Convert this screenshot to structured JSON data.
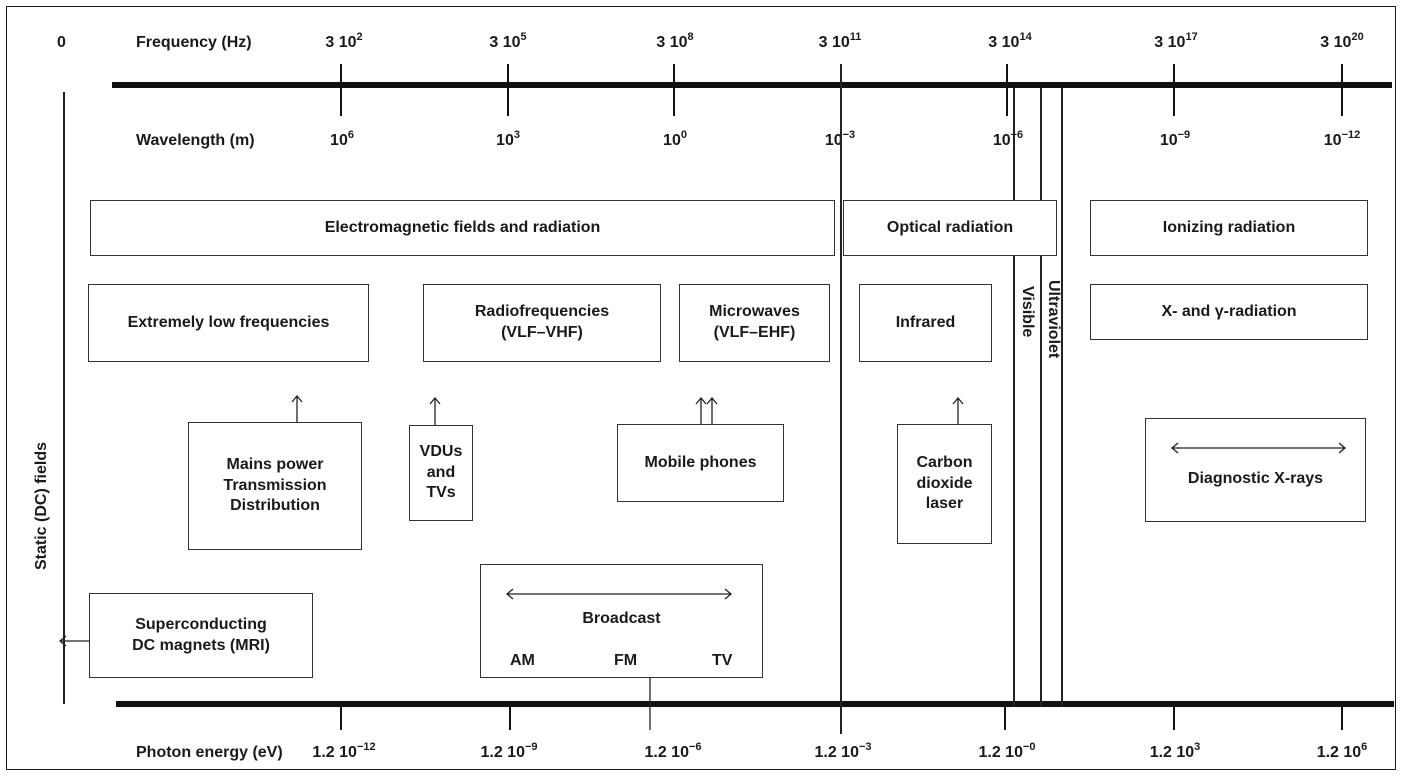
{
  "axes": {
    "zero_label": "0",
    "frequency_label": "Frequency (Hz)",
    "wavelength_label": "Wavelength (m)",
    "photon_label": "Photon energy (eV)",
    "freq_ticks": [
      {
        "base": "3 10",
        "exp": "2"
      },
      {
        "base": "3 10",
        "exp": "5"
      },
      {
        "base": "3 10",
        "exp": "8"
      },
      {
        "base": "3 10",
        "exp": "11"
      },
      {
        "base": "3 10",
        "exp": "14"
      },
      {
        "base": "3 10",
        "exp": "17"
      },
      {
        "base": "3 10",
        "exp": "20"
      }
    ],
    "wave_ticks": [
      {
        "base": "10",
        "exp": "6"
      },
      {
        "base": "10",
        "exp": "3"
      },
      {
        "base": "10",
        "exp": "0"
      },
      {
        "base": "10",
        "exp": "−3"
      },
      {
        "base": "10",
        "exp": "−6"
      },
      {
        "base": "10",
        "exp": "−9"
      },
      {
        "base": "10",
        "exp": "−12"
      }
    ],
    "energy_ticks": [
      {
        "base": "1.2 10",
        "exp": "−12"
      },
      {
        "base": "1.2 10",
        "exp": "−9"
      },
      {
        "base": "1.2 10",
        "exp": "−6"
      },
      {
        "base": "1.2 10",
        "exp": "−3"
      },
      {
        "base": "1.2 10",
        "exp": "−0"
      },
      {
        "base": "1.2 10",
        "exp": "3"
      },
      {
        "base": "1.2 10",
        "exp": "6"
      }
    ]
  },
  "categories": {
    "em": "Electromagnetic fields and radiation",
    "optical": "Optical radiation",
    "ionizing": "Ionizing radiation"
  },
  "bands": {
    "elf": "Extremely low frequencies",
    "radio": "Radiofrequencies\n(VLF–VHF)",
    "micro": "Microwaves\n(VLF–EHF)",
    "infrared": "Infrared",
    "xray": "X- and γ-radiation",
    "visible": "Visible",
    "ultraviolet": "Ultraviolet",
    "static": "Static (DC) fields"
  },
  "sources": {
    "mains": "Mains power\nTransmission\nDistribution",
    "vdu": "VDUs\nand\nTVs",
    "mobile": "Mobile phones",
    "co2": "Carbon\ndioxide\nlaser",
    "diag": "Diagnostic X-rays",
    "mri": "Superconducting\nDC magnets (MRI)",
    "broadcast": "Broadcast",
    "am": "AM",
    "fm": "FM",
    "tv": "TV"
  }
}
